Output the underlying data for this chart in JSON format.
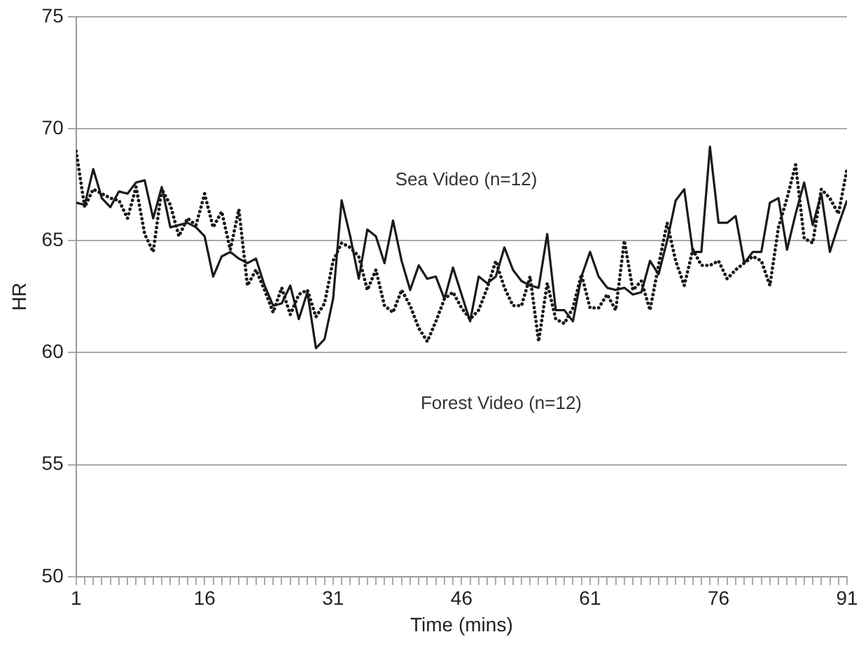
{
  "chart_data": {
    "type": "line",
    "xlabel": "Time (mins)",
    "ylabel": "HR",
    "x": [
      1,
      2,
      3,
      4,
      5,
      6,
      7,
      8,
      9,
      10,
      11,
      12,
      13,
      14,
      15,
      16,
      17,
      18,
      19,
      20,
      21,
      22,
      23,
      24,
      25,
      26,
      27,
      28,
      29,
      30,
      31,
      32,
      33,
      34,
      35,
      36,
      37,
      38,
      39,
      40,
      41,
      42,
      43,
      44,
      45,
      46,
      47,
      48,
      49,
      50,
      51,
      52,
      53,
      54,
      55,
      56,
      57,
      58,
      59,
      60,
      61,
      62,
      63,
      64,
      65,
      66,
      67,
      68,
      69,
      70,
      71,
      72,
      73,
      74,
      75,
      76,
      77,
      78,
      79,
      80,
      81,
      82,
      83,
      84,
      85,
      86,
      87,
      88,
      89,
      90,
      91
    ],
    "series": [
      {
        "color": "#1a1a1a",
        "line_style": "solid",
        "values": [
          66.7,
          66.6,
          68.2,
          66.9,
          66.5,
          67.2,
          67.1,
          67.6,
          67.7,
          66.0,
          67.4,
          65.6,
          65.7,
          65.8,
          65.6,
          65.2,
          63.4,
          64.3,
          64.5,
          64.2,
          64.0,
          64.2,
          63.0,
          62.1,
          62.2,
          63.0,
          61.5,
          62.7,
          60.2,
          60.6,
          62.4,
          66.8,
          65.2,
          63.3,
          65.5,
          65.2,
          64.0,
          65.9,
          64.1,
          62.8,
          63.9,
          63.3,
          63.4,
          62.4,
          63.8,
          62.6,
          61.4,
          63.4,
          63.1,
          63.4,
          64.7,
          63.7,
          63.2,
          63.0,
          62.9,
          65.3,
          61.9,
          61.9,
          61.4,
          63.4,
          64.5,
          63.4,
          62.9,
          62.8,
          62.9,
          62.6,
          62.7,
          64.1,
          63.5,
          65.0,
          66.8,
          67.3,
          64.5,
          64.5,
          69.2,
          65.8,
          65.8,
          66.1,
          64.0,
          64.5,
          64.5,
          66.7,
          66.9,
          64.6,
          66.2,
          67.6,
          65.7,
          67.1,
          64.5,
          65.7,
          66.8
        ]
      },
      {
        "color": "#1a1a1a",
        "line_style": "dotted",
        "values": [
          69.0,
          66.5,
          67.3,
          67.1,
          66.9,
          66.8,
          66.0,
          67.4,
          65.3,
          64.5,
          67.3,
          66.6,
          65.2,
          66.0,
          65.7,
          67.1,
          65.6,
          66.3,
          64.6,
          66.4,
          63.0,
          63.7,
          62.8,
          61.8,
          62.9,
          61.7,
          62.6,
          62.8,
          61.6,
          62.2,
          64.1,
          64.9,
          64.7,
          64.3,
          62.8,
          63.7,
          62.1,
          61.8,
          62.8,
          62.1,
          61.1,
          60.5,
          61.4,
          62.4,
          62.7,
          62.0,
          61.5,
          61.9,
          62.9,
          64.1,
          62.9,
          62.1,
          62.1,
          63.4,
          60.5,
          63.1,
          61.5,
          61.3,
          62.0,
          63.5,
          62.0,
          62.0,
          62.6,
          61.9,
          65.0,
          62.8,
          63.2,
          61.9,
          63.9,
          65.8,
          64.1,
          63.0,
          64.6,
          63.9,
          63.9,
          64.1,
          63.3,
          63.7,
          64.0,
          64.3,
          64.1,
          63.0,
          65.6,
          66.9,
          68.4,
          65.1,
          64.9,
          67.3,
          66.9,
          66.2,
          68.2
        ]
      }
    ],
    "xlim": [
      1,
      91
    ],
    "xticks": [
      1,
      {
        "value": 2,
        "label": null
      },
      {
        "value": 3,
        "label": null
      },
      {
        "value": 4,
        "label": null
      },
      {
        "value": 5,
        "label": null
      },
      {
        "value": 6,
        "label": null
      },
      {
        "value": 7,
        "label": null
      },
      {
        "value": 8,
        "label": null
      },
      {
        "value": 9,
        "label": null
      },
      {
        "value": 10,
        "label": null
      },
      {
        "value": 11,
        "label": null
      },
      {
        "value": 12,
        "label": null
      },
      {
        "value": 13,
        "label": null
      },
      {
        "value": 14,
        "label": null
      },
      {
        "value": 15,
        "label": null
      },
      16,
      {
        "value": 17,
        "label": null
      },
      {
        "value": 18,
        "label": null
      },
      {
        "value": 19,
        "label": null
      },
      {
        "value": 20,
        "label": null
      },
      {
        "value": 21,
        "label": null
      },
      {
        "value": 22,
        "label": null
      },
      {
        "value": 23,
        "label": null
      },
      {
        "value": 24,
        "label": null
      },
      {
        "value": 25,
        "label": null
      },
      {
        "value": 26,
        "label": null
      },
      {
        "value": 27,
        "label": null
      },
      {
        "value": 28,
        "label": null
      },
      {
        "value": 29,
        "label": null
      },
      {
        "value": 30,
        "label": null
      },
      31,
      {
        "value": 32,
        "label": null
      },
      {
        "value": 33,
        "label": null
      },
      {
        "value": 34,
        "label": null
      },
      {
        "value": 35,
        "label": null
      },
      {
        "value": 36,
        "label": null
      },
      {
        "value": 37,
        "label": null
      },
      {
        "value": 38,
        "label": null
      },
      {
        "value": 39,
        "label": null
      },
      {
        "value": 40,
        "label": null
      },
      {
        "value": 41,
        "label": null
      },
      {
        "value": 42,
        "label": null
      },
      {
        "value": 43,
        "label": null
      },
      {
        "value": 44,
        "label": null
      },
      {
        "value": 45,
        "label": null
      },
      46,
      {
        "value": 47,
        "label": null
      },
      {
        "value": 48,
        "label": null
      },
      {
        "value": 49,
        "label": null
      },
      {
        "value": 50,
        "label": null
      },
      {
        "value": 51,
        "label": null
      },
      {
        "value": 52,
        "label": null
      },
      {
        "value": 53,
        "label": null
      },
      {
        "value": 54,
        "label": null
      },
      {
        "value": 55,
        "label": null
      },
      {
        "value": 56,
        "label": null
      },
      {
        "value": 57,
        "label": null
      },
      {
        "value": 58,
        "label": null
      },
      {
        "value": 59,
        "label": null
      },
      {
        "value": 60,
        "label": null
      },
      61,
      {
        "value": 62,
        "label": null
      },
      {
        "value": 63,
        "label": null
      },
      {
        "value": 64,
        "label": null
      },
      {
        "value": 65,
        "label": null
      },
      {
        "value": 66,
        "label": null
      },
      {
        "value": 67,
        "label": null
      },
      {
        "value": 68,
        "label": null
      },
      {
        "value": 69,
        "label": null
      },
      {
        "value": 70,
        "label": null
      },
      {
        "value": 71,
        "label": null
      },
      {
        "value": 72,
        "label": null
      },
      {
        "value": 73,
        "label": null
      },
      {
        "value": 74,
        "label": null
      },
      {
        "value": 75,
        "label": null
      },
      76,
      {
        "value": 77,
        "label": null
      },
      {
        "value": 78,
        "label": null
      },
      {
        "value": 79,
        "label": null
      },
      {
        "value": 80,
        "label": null
      },
      {
        "value": 81,
        "label": null
      },
      {
        "value": 82,
        "label": null
      },
      {
        "value": 83,
        "label": null
      },
      {
        "value": 84,
        "label": null
      },
      {
        "value": 85,
        "label": null
      },
      {
        "value": 86,
        "label": null
      },
      {
        "value": 87,
        "label": null
      },
      {
        "value": 88,
        "label": null
      },
      {
        "value": 89,
        "label": null
      },
      {
        "value": 90,
        "label": null
      },
      91
    ],
    "ylim": [
      50,
      75
    ],
    "yticks": [
      50,
      55,
      60,
      65,
      70,
      75
    ],
    "grid": "y",
    "legend": false,
    "marker": "none",
    "annotations": [
      "Sea Video (n=12)",
      "Forest Video (n=12)"
    ]
  }
}
